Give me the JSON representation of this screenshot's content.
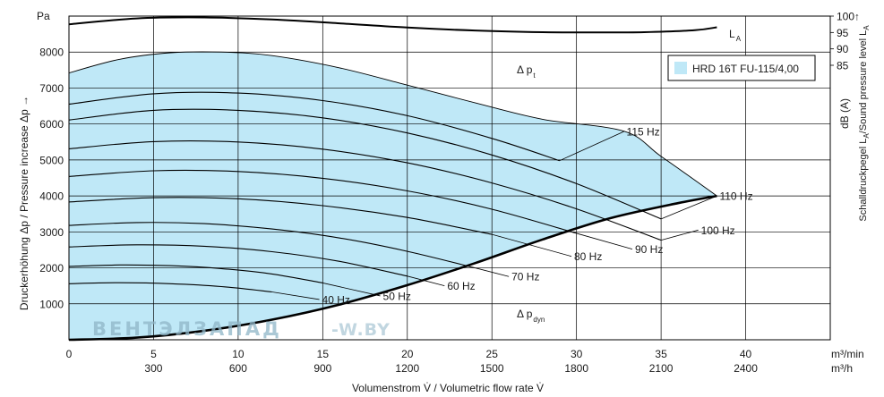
{
  "chart_data": {
    "type": "line",
    "ylabel_left": "Druckerhöhung Δp / Pressure increase  Δp →",
    "ylabel_left_unit": "Pa",
    "xlabel": "Volumenstrom V̇ / Volumetric flow rate V̇",
    "x_units_primary": "m³/min",
    "x_units_secondary": "m³/h",
    "xlim": [
      0,
      45
    ],
    "ylim": [
      0,
      9000
    ],
    "x_ticks_primary": [
      "0",
      "5",
      "10",
      "15",
      "20",
      "25",
      "30",
      "35",
      "40"
    ],
    "x_ticks_secondary": [
      "300",
      "600",
      "900",
      "1200",
      "1500",
      "1800",
      "2100",
      "2400"
    ],
    "y_ticks": [
      "1000",
      "2000",
      "3000",
      "4000",
      "5000",
      "6000",
      "7000",
      "8000"
    ],
    "grid": true,
    "legend": {
      "position": "top-right",
      "label": "HRD 16T FU-115/4,00",
      "color": "#bfe8f7"
    },
    "region_labels": {
      "pt": "Δ p",
      "pt_sub": "t",
      "pdyn": "Δ p",
      "pdyn_sub": "dyn",
      "la": "L",
      "la_sub": "A"
    },
    "right_axis": {
      "label_main": "Schalldruckpegel L",
      "label_sub": "A",
      "label_rest": "/Sound pressure level L",
      "label_sub2": "A",
      "unit": "dB (A)",
      "ticks": [
        "100↑",
        "95",
        "90",
        "85"
      ],
      "tick_values": [
        100,
        95,
        90,
        85
      ]
    },
    "series": [
      {
        "name": "40 Hz",
        "label": "40 Hz",
        "x": [
          0,
          3,
          6,
          9,
          12,
          14.8
        ],
        "y": [
          1560,
          1585,
          1560,
          1480,
          1330,
          1120
        ]
      },
      {
        "name": "50 Hz",
        "label": "50 Hz",
        "x": [
          0,
          3,
          6,
          9,
          12,
          15,
          18.4
        ],
        "y": [
          2040,
          2080,
          2060,
          1980,
          1830,
          1580,
          1220
        ]
      },
      {
        "name": "60 Hz",
        "label": "60 Hz",
        "x": [
          0,
          4,
          8,
          12,
          16,
          20,
          22.2
        ],
        "y": [
          2580,
          2640,
          2600,
          2450,
          2180,
          1770,
          1500
        ]
      },
      {
        "name": "70 Hz",
        "label": "70 Hz",
        "x": [
          0,
          4,
          8,
          12,
          16,
          20,
          24,
          26
        ],
        "y": [
          3180,
          3260,
          3230,
          3080,
          2830,
          2460,
          2000,
          1760
        ]
      },
      {
        "name": "80 Hz",
        "label": "80 Hz",
        "x": [
          0,
          5,
          10,
          15,
          20,
          25,
          29.7
        ],
        "y": [
          3830,
          3950,
          3920,
          3730,
          3400,
          2930,
          2320
        ]
      },
      {
        "name": "90 Hz",
        "label": "90 Hz",
        "x": [
          0,
          5,
          10,
          15,
          20,
          25,
          30,
          33.3
        ],
        "y": [
          4540,
          4700,
          4680,
          4490,
          4140,
          3630,
          2960,
          2520
        ]
      },
      {
        "name": "100 Hz",
        "label": "100 Hz",
        "x": [
          0,
          5,
          10,
          15,
          20,
          25,
          30,
          35,
          37.2
        ],
        "y": [
          5310,
          5510,
          5500,
          5300,
          4920,
          4360,
          3640,
          2770,
          3050
        ]
      },
      {
        "name": "110 Hz",
        "label": "110 Hz",
        "x": [
          0,
          5,
          10,
          15,
          20,
          25,
          30,
          35,
          38.3
        ],
        "y": [
          6110,
          6380,
          6380,
          6170,
          5750,
          5140,
          4340,
          3360,
          4000
        ]
      },
      {
        "name": "115 Hz",
        "label": "115 Hz",
        "x": [
          0,
          5,
          10,
          15,
          20,
          25,
          29,
          32.8
        ],
        "y": [
          6550,
          6840,
          6860,
          6650,
          6230,
          5600,
          4980,
          5790
        ]
      }
    ],
    "envelope_top": {
      "x": [
        0,
        3,
        6,
        9,
        12,
        16,
        20,
        24,
        28,
        32.8,
        35,
        38.3
      ],
      "y": [
        7420,
        7800,
        7980,
        8000,
        7900,
        7560,
        7080,
        6590,
        6130,
        5800,
        5100,
        4000
      ]
    },
    "system_curve": {
      "x": [
        0,
        4,
        8,
        12,
        16,
        20,
        24,
        28,
        32,
        36,
        38.3
      ],
      "y": [
        0,
        60,
        250,
        560,
        980,
        1520,
        2130,
        2790,
        3380,
        3800,
        4000
      ]
    },
    "sound_level_curve": {
      "x": [
        0,
        4,
        8,
        12,
        16,
        20,
        24,
        28,
        31,
        34,
        37,
        38.3
      ],
      "y": [
        97.5,
        99.3,
        99.6,
        99.0,
        97.8,
        96.5,
        95.6,
        95.1,
        95.0,
        95.1,
        95.7,
        96.6
      ]
    }
  }
}
